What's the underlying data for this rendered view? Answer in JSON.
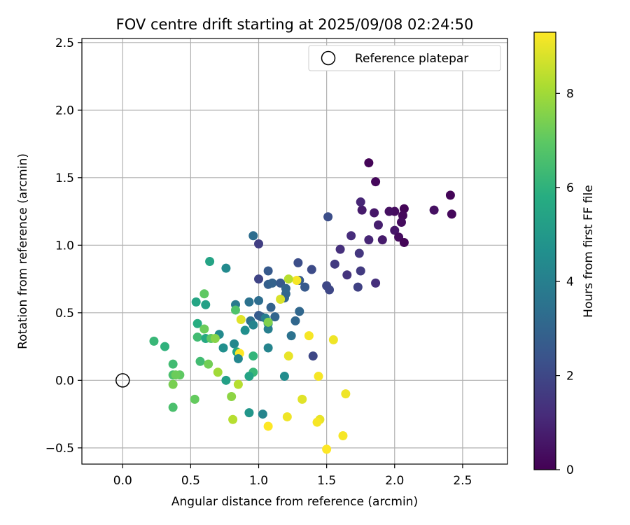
{
  "chart_data": {
    "type": "scatter",
    "title": "FOV centre drift starting at 2025/09/08 02:24:50",
    "xlabel": "Angular distance from reference (arcmin)",
    "ylabel": "Rotation from reference (arcmin)",
    "xlim": [
      -0.3,
      2.83
    ],
    "ylim": [
      -0.62,
      2.53
    ],
    "x_ticks": [
      0.0,
      0.5,
      1.0,
      1.5,
      2.0,
      2.5
    ],
    "y_ticks": [
      -0.5,
      0.0,
      0.5,
      1.0,
      1.5,
      2.0,
      2.5
    ],
    "x_tick_labels": [
      "0.0",
      "0.5",
      "1.0",
      "1.5",
      "2.0",
      "2.5"
    ],
    "y_tick_labels": [
      "−0.5",
      "0.0",
      "0.5",
      "1.0",
      "1.5",
      "2.0",
      "2.5"
    ],
    "grid": true,
    "legend": {
      "placement": "top-right",
      "entries": [
        "Reference platepar"
      ]
    },
    "reference_point": {
      "x": 0.0,
      "y": 0.0
    },
    "colorbar": {
      "label": "Hours from first FF file",
      "colormap": "viridis",
      "range": [
        0,
        9.3
      ],
      "ticks": [
        0,
        2,
        4,
        6,
        8
      ],
      "tick_labels": [
        "0",
        "2",
        "4",
        "6",
        "8"
      ]
    },
    "points": [
      {
        "x": 1.81,
        "y": 1.61,
        "c": 0.1
      },
      {
        "x": 1.86,
        "y": 1.47,
        "c": 0.2
      },
      {
        "x": 2.41,
        "y": 1.37,
        "c": 0.1
      },
      {
        "x": 2.42,
        "y": 1.23,
        "c": 0.2
      },
      {
        "x": 2.29,
        "y": 1.26,
        "c": 0.4
      },
      {
        "x": 2.07,
        "y": 1.27,
        "c": 0.1
      },
      {
        "x": 2.06,
        "y": 1.22,
        "c": 0.2
      },
      {
        "x": 2.05,
        "y": 1.17,
        "c": 0.3
      },
      {
        "x": 2.0,
        "y": 1.25,
        "c": 0.3
      },
      {
        "x": 1.96,
        "y": 1.25,
        "c": 0.4
      },
      {
        "x": 1.85,
        "y": 1.24,
        "c": 0.6
      },
      {
        "x": 1.76,
        "y": 1.26,
        "c": 0.7
      },
      {
        "x": 1.75,
        "y": 1.32,
        "c": 1.0
      },
      {
        "x": 1.88,
        "y": 1.15,
        "c": 0.8
      },
      {
        "x": 2.0,
        "y": 1.11,
        "c": 0.6
      },
      {
        "x": 2.03,
        "y": 1.06,
        "c": 0.3
      },
      {
        "x": 2.07,
        "y": 1.02,
        "c": 0.1
      },
      {
        "x": 1.91,
        "y": 1.04,
        "c": 0.7
      },
      {
        "x": 1.81,
        "y": 1.04,
        "c": 1.0
      },
      {
        "x": 1.68,
        "y": 1.07,
        "c": 1.2
      },
      {
        "x": 1.51,
        "y": 1.21,
        "c": 2.2
      },
      {
        "x": 1.6,
        "y": 0.97,
        "c": 1.3
      },
      {
        "x": 1.74,
        "y": 0.94,
        "c": 1.5
      },
      {
        "x": 1.56,
        "y": 0.86,
        "c": 1.6
      },
      {
        "x": 1.65,
        "y": 0.78,
        "c": 1.4
      },
      {
        "x": 1.75,
        "y": 0.81,
        "c": 1.6
      },
      {
        "x": 1.73,
        "y": 0.69,
        "c": 1.8
      },
      {
        "x": 1.86,
        "y": 0.72,
        "c": 1.3
      },
      {
        "x": 1.5,
        "y": 0.7,
        "c": 2.0
      },
      {
        "x": 1.52,
        "y": 0.67,
        "c": 2.0
      },
      {
        "x": 1.39,
        "y": 0.82,
        "c": 2.1
      },
      {
        "x": 1.29,
        "y": 0.87,
        "c": 2.2
      },
      {
        "x": 1.34,
        "y": 0.69,
        "c": 2.6
      },
      {
        "x": 0.96,
        "y": 1.07,
        "c": 3.3
      },
      {
        "x": 1.0,
        "y": 1.01,
        "c": 1.7
      },
      {
        "x": 1.07,
        "y": 0.81,
        "c": 2.6
      },
      {
        "x": 1.0,
        "y": 0.75,
        "c": 1.9
      },
      {
        "x": 1.07,
        "y": 0.71,
        "c": 2.8
      },
      {
        "x": 1.1,
        "y": 0.72,
        "c": 2.9
      },
      {
        "x": 1.16,
        "y": 0.72,
        "c": 2.6
      },
      {
        "x": 1.2,
        "y": 0.68,
        "c": 3.0
      },
      {
        "x": 1.2,
        "y": 0.64,
        "c": 3.1
      },
      {
        "x": 1.19,
        "y": 0.61,
        "c": 3.0
      },
      {
        "x": 1.3,
        "y": 0.74,
        "c": 2.7
      },
      {
        "x": 1.28,
        "y": 0.74,
        "c": 9.2
      },
      {
        "x": 1.22,
        "y": 0.75,
        "c": 8.3
      },
      {
        "x": 1.16,
        "y": 0.6,
        "c": 8.8
      },
      {
        "x": 0.76,
        "y": 0.83,
        "c": 4.4
      },
      {
        "x": 0.64,
        "y": 0.88,
        "c": 5.4
      },
      {
        "x": 0.93,
        "y": 0.58,
        "c": 3.5
      },
      {
        "x": 1.0,
        "y": 0.59,
        "c": 3.3
      },
      {
        "x": 0.83,
        "y": 0.56,
        "c": 3.8
      },
      {
        "x": 1.09,
        "y": 0.54,
        "c": 2.9
      },
      {
        "x": 1.3,
        "y": 0.51,
        "c": 3.1
      },
      {
        "x": 1.0,
        "y": 0.48,
        "c": 2.6
      },
      {
        "x": 1.02,
        "y": 0.47,
        "c": 2.8
      },
      {
        "x": 1.12,
        "y": 0.47,
        "c": 3.0
      },
      {
        "x": 1.05,
        "y": 0.46,
        "c": 4.0
      },
      {
        "x": 0.94,
        "y": 0.44,
        "c": 3.4
      },
      {
        "x": 0.96,
        "y": 0.41,
        "c": 4.2
      },
      {
        "x": 1.27,
        "y": 0.44,
        "c": 3.1
      },
      {
        "x": 1.07,
        "y": 0.42,
        "c": 4.3
      },
      {
        "x": 1.07,
        "y": 0.38,
        "c": 4.0
      },
      {
        "x": 0.9,
        "y": 0.37,
        "c": 4.6
      },
      {
        "x": 0.6,
        "y": 0.64,
        "c": 7.0
      },
      {
        "x": 0.61,
        "y": 0.56,
        "c": 5.3
      },
      {
        "x": 0.54,
        "y": 0.58,
        "c": 5.5
      },
      {
        "x": 0.83,
        "y": 0.52,
        "c": 6.7
      },
      {
        "x": 0.87,
        "y": 0.45,
        "c": 8.9
      },
      {
        "x": 1.07,
        "y": 0.43,
        "c": 7.5
      },
      {
        "x": 1.24,
        "y": 0.33,
        "c": 3.5
      },
      {
        "x": 1.37,
        "y": 0.33,
        "c": 9.2
      },
      {
        "x": 1.55,
        "y": 0.3,
        "c": 9.1
      },
      {
        "x": 1.4,
        "y": 0.18,
        "c": 2.0
      },
      {
        "x": 1.22,
        "y": 0.18,
        "c": 9.0
      },
      {
        "x": 0.55,
        "y": 0.42,
        "c": 5.8
      },
      {
        "x": 0.6,
        "y": 0.38,
        "c": 7.2
      },
      {
        "x": 0.71,
        "y": 0.34,
        "c": 4.4
      },
      {
        "x": 0.55,
        "y": 0.32,
        "c": 6.4
      },
      {
        "x": 0.61,
        "y": 0.31,
        "c": 5.6
      },
      {
        "x": 0.65,
        "y": 0.31,
        "c": 7.0
      },
      {
        "x": 0.68,
        "y": 0.31,
        "c": 7.6
      },
      {
        "x": 0.82,
        "y": 0.27,
        "c": 4.3
      },
      {
        "x": 0.74,
        "y": 0.24,
        "c": 4.6
      },
      {
        "x": 0.84,
        "y": 0.21,
        "c": 5.5
      },
      {
        "x": 0.86,
        "y": 0.2,
        "c": 9.3
      },
      {
        "x": 1.07,
        "y": 0.24,
        "c": 4.2
      },
      {
        "x": 0.96,
        "y": 0.18,
        "c": 6.1
      },
      {
        "x": 0.85,
        "y": 0.16,
        "c": 4.3
      },
      {
        "x": 0.23,
        "y": 0.29,
        "c": 6.2
      },
      {
        "x": 0.31,
        "y": 0.25,
        "c": 6.0
      },
      {
        "x": 0.57,
        "y": 0.14,
        "c": 6.4
      },
      {
        "x": 0.63,
        "y": 0.12,
        "c": 7.3
      },
      {
        "x": 0.7,
        "y": 0.06,
        "c": 8.0
      },
      {
        "x": 0.96,
        "y": 0.06,
        "c": 6.2
      },
      {
        "x": 0.93,
        "y": 0.03,
        "c": 5.4
      },
      {
        "x": 1.19,
        "y": 0.03,
        "c": 4.5
      },
      {
        "x": 0.37,
        "y": 0.12,
        "c": 6.4
      },
      {
        "x": 0.37,
        "y": 0.04,
        "c": 6.6
      },
      {
        "x": 0.42,
        "y": 0.04,
        "c": 7.0
      },
      {
        "x": 0.39,
        "y": 0.04,
        "c": 7.2
      },
      {
        "x": 0.37,
        "y": -0.03,
        "c": 7.4
      },
      {
        "x": 0.76,
        "y": 0.0,
        "c": 5.3
      },
      {
        "x": 0.85,
        "y": -0.03,
        "c": 8.3
      },
      {
        "x": 1.44,
        "y": 0.03,
        "c": 9.2
      },
      {
        "x": 1.64,
        "y": -0.1,
        "c": 9.1
      },
      {
        "x": 1.32,
        "y": -0.14,
        "c": 8.9
      },
      {
        "x": 0.8,
        "y": -0.12,
        "c": 7.7
      },
      {
        "x": 0.53,
        "y": -0.14,
        "c": 7.1
      },
      {
        "x": 0.37,
        "y": -0.2,
        "c": 6.6
      },
      {
        "x": 0.93,
        "y": -0.24,
        "c": 4.9
      },
      {
        "x": 1.03,
        "y": -0.25,
        "c": 4.2
      },
      {
        "x": 0.81,
        "y": -0.29,
        "c": 8.3
      },
      {
        "x": 1.21,
        "y": -0.27,
        "c": 9.1
      },
      {
        "x": 1.45,
        "y": -0.29,
        "c": 9.0
      },
      {
        "x": 1.43,
        "y": -0.31,
        "c": 9.2
      },
      {
        "x": 1.07,
        "y": -0.34,
        "c": 9.3
      },
      {
        "x": 1.62,
        "y": -0.41,
        "c": 9.2
      },
      {
        "x": 1.5,
        "y": -0.51,
        "c": 9.3
      }
    ]
  }
}
